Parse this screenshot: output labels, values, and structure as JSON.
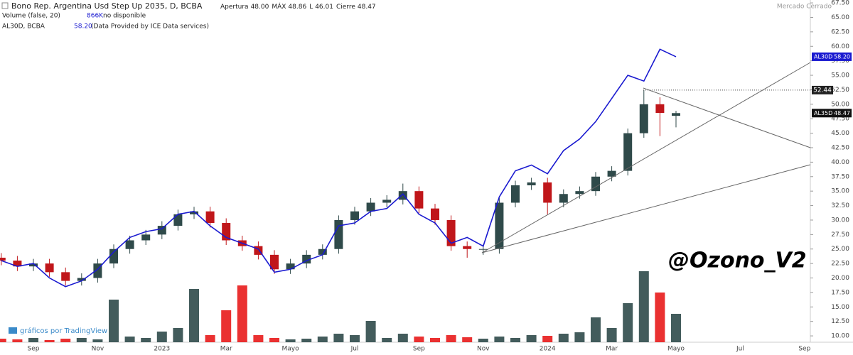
{
  "header": {
    "title": "Bono Rep. Argentina Usd Step Up 2035, D, BCBA",
    "ohlc_labels": [
      "Apertura",
      "MÁX",
      "L",
      "Cierre"
    ],
    "ohlc_values": [
      48.0,
      48.86,
      46.01,
      48.47
    ],
    "ohlc_value_labels": [
      "48.00",
      "48.86",
      "46.01",
      "48.47"
    ],
    "status": "Mercado Cerrado",
    "volume_label": "Volume (false, 20)",
    "volume_value": "866K",
    "volume_note": "no disponible",
    "compare_label": "AL30D, BCBA",
    "compare_value": 58.2,
    "compare_value_label": "58.20",
    "compare_note": "(Data Provided by ICE Data services)"
  },
  "chart_data": {
    "type": "candlestick",
    "categories": [
      null,
      null,
      "Sep",
      null,
      null,
      null,
      "Nov",
      null,
      null,
      null,
      "2023",
      null,
      null,
      null,
      "Mar",
      null,
      null,
      null,
      "Mayo",
      null,
      null,
      null,
      "Jul",
      null,
      null,
      null,
      "Sep",
      null,
      null,
      null,
      "Nov",
      null,
      null,
      null,
      "2024",
      null,
      null,
      null,
      "Mar",
      null,
      null,
      null,
      "Mayo",
      null,
      null,
      null,
      "Jul",
      null,
      null,
      null,
      "Sep"
    ],
    "series": [
      {
        "name": "AL35D",
        "type": "candlestick",
        "up_color": "#2f4a4a",
        "down_color": "#c0161a",
        "label_color": "#111111",
        "open": [
          23.5,
          23.0,
          22.0,
          22.5,
          21.0,
          19.5,
          20.0,
          22.5,
          25.0,
          26.5,
          27.5,
          29.0,
          31.0,
          31.5,
          29.5,
          26.5,
          25.5,
          24.0,
          21.5,
          22.5,
          24.0,
          25.0,
          30.0,
          31.5,
          33.0,
          33.5,
          35.0,
          32.0,
          30.0,
          25.5,
          25.0,
          25.0,
          33.0,
          36.0,
          36.5,
          33.0,
          34.5,
          35.0,
          37.5,
          38.5,
          45.0,
          50.0,
          48.0,
          null,
          null,
          null,
          null,
          null,
          null,
          null,
          null
        ],
        "high": [
          24.3,
          23.8,
          23.3,
          23.3,
          21.8,
          20.8,
          23.3,
          25.8,
          27.3,
          28.3,
          29.8,
          31.8,
          32.3,
          32.3,
          30.3,
          27.3,
          26.3,
          24.8,
          23.3,
          24.8,
          25.8,
          30.8,
          32.3,
          33.8,
          34.3,
          36.3,
          35.8,
          32.8,
          30.8,
          26.3,
          25.8,
          33.8,
          36.8,
          37.3,
          37.3,
          35.3,
          35.8,
          38.3,
          39.3,
          45.8,
          52.44,
          51.2,
          48.86,
          null,
          null,
          null,
          null,
          null,
          null,
          null,
          null
        ],
        "low": [
          22.2,
          21.2,
          21.2,
          20.2,
          18.7,
          18.7,
          19.2,
          21.7,
          24.2,
          25.7,
          26.7,
          28.2,
          30.2,
          28.7,
          25.7,
          24.7,
          23.2,
          20.7,
          20.7,
          21.7,
          23.2,
          24.2,
          29.2,
          30.7,
          32.2,
          32.7,
          31.2,
          29.2,
          24.7,
          23.5,
          24.0,
          24.2,
          32.2,
          35.2,
          31.0,
          32.2,
          33.7,
          34.2,
          36.7,
          37.7,
          44.2,
          44.5,
          46.01,
          null,
          null,
          null,
          null,
          null,
          null,
          null,
          null
        ],
        "close": [
          23.0,
          22.0,
          22.5,
          21.0,
          19.5,
          20.0,
          22.5,
          25.0,
          26.5,
          27.5,
          29.0,
          31.0,
          31.5,
          29.5,
          26.5,
          25.5,
          24.0,
          21.5,
          22.5,
          24.0,
          25.0,
          30.0,
          31.5,
          33.0,
          33.5,
          35.0,
          32.0,
          30.0,
          25.5,
          25.0,
          25.0,
          33.0,
          36.0,
          36.5,
          33.0,
          34.5,
          35.0,
          37.5,
          38.5,
          45.0,
          50.0,
          48.5,
          48.47,
          null,
          null,
          null,
          null,
          null,
          null,
          null,
          null
        ]
      },
      {
        "name": "AL30D",
        "type": "line",
        "color": "#1a1ad0",
        "last_label": "58.20",
        "values": [
          23,
          22,
          22.5,
          20,
          18.5,
          19.5,
          21.5,
          24.5,
          27,
          28,
          28.5,
          31,
          31.5,
          29,
          27,
          26,
          25,
          21,
          21.5,
          23,
          24,
          29,
          29.5,
          31.5,
          32,
          34.5,
          31,
          29.5,
          26,
          27,
          25.5,
          34,
          38.5,
          39.5,
          38,
          42,
          44,
          47,
          51,
          55,
          54,
          59.5,
          58.2,
          null,
          null,
          null,
          null,
          null,
          null,
          null,
          null
        ]
      }
    ],
    "volume": [
      5,
      4,
      6,
      3,
      5,
      6,
      4,
      60,
      8,
      6,
      15,
      20,
      75,
      10,
      45,
      80,
      10,
      6,
      4,
      5,
      8,
      12,
      10,
      30,
      6,
      12,
      8,
      6,
      10,
      7,
      5,
      8,
      6,
      10,
      9,
      12,
      14,
      35,
      20,
      55,
      100,
      70,
      40,
      null,
      null,
      null,
      null,
      null,
      null,
      null,
      null
    ],
    "vlim": [
      0,
      100
    ],
    "ylim": [
      6.7,
      68
    ],
    "yticks": [
      {
        "value": 10,
        "label": "10.00"
      },
      {
        "value": 12.5,
        "label": "12.50"
      },
      {
        "value": 15,
        "label": "15.00"
      },
      {
        "value": 17.5,
        "label": "17.50"
      },
      {
        "value": 20,
        "label": "20.00"
      },
      {
        "value": 22.5,
        "label": "22.50"
      },
      {
        "value": 25,
        "label": "25.00"
      },
      {
        "value": 27.5,
        "label": "27.50"
      },
      {
        "value": 30,
        "label": "30.00"
      },
      {
        "value": 32.5,
        "label": "32.50"
      },
      {
        "value": 35,
        "label": "35.00"
      },
      {
        "value": 37.5,
        "label": "37.50"
      },
      {
        "value": 40,
        "label": "40.00"
      },
      {
        "value": 42.5,
        "label": "42.50"
      },
      {
        "value": 45,
        "label": "45.00"
      },
      {
        "value": 47.5,
        "label": "47.50"
      },
      {
        "value": 50,
        "label": "50.00"
      },
      {
        "value": 52.5,
        "label": "52.50"
      },
      {
        "value": 55,
        "label": "55.00"
      },
      {
        "value": 57.5,
        "label": "57.50"
      },
      {
        "value": 60,
        "label": "60.00"
      },
      {
        "value": 62.5,
        "label": "62.50"
      },
      {
        "value": 65,
        "label": "65.00"
      },
      {
        "value": 67.5,
        "label": "67.50"
      }
    ],
    "horizontal_line": 52.44,
    "watermark": "@Ozono_V2",
    "credit": "gráficos por TradingView"
  }
}
